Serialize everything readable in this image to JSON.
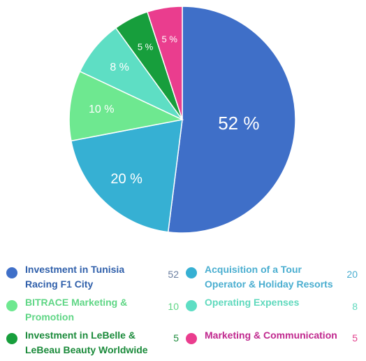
{
  "chart_data": {
    "type": "pie",
    "title": "",
    "unit_suffix": " %",
    "slices": [
      {
        "label": "Investment in Tunisia Racing F1 City",
        "legend_lines": [
          "Investment in Tunisia",
          "Racing F1 City"
        ],
        "value": 52,
        "color": "#3f6fc8",
        "text_color": "#2f5faa",
        "value_color": "#6b7fa0"
      },
      {
        "label": "Acquisition of a Tour Operator & Holiday Resorts",
        "legend_lines": [
          "Acquisition of a Tour",
          "Operator & Holiday Resorts"
        ],
        "value": 20,
        "color": "#36b0d3",
        "text_color": "#4aaed0",
        "value_color": "#4aaed0"
      },
      {
        "label": "BITRACE Marketing & Promotion",
        "legend_lines": [
          "BITRACE Marketing &",
          "Promotion"
        ],
        "value": 10,
        "color": "#6ee890",
        "text_color": "#5fd685",
        "value_color": "#5fd685"
      },
      {
        "label": "Operating Expenses",
        "legend_lines": [
          "Operating Expenses"
        ],
        "value": 8,
        "color": "#5edec4",
        "text_color": "#5fd9bd",
        "value_color": "#5fd9bd"
      },
      {
        "label": "Investment in LeBelle & LeBeau Beauty Worldwide",
        "legend_lines": [
          "Investment in LeBelle &",
          "LeBeau Beauty Worldwide"
        ],
        "value": 5,
        "color": "#179e3c",
        "text_color": "#1a8a3a",
        "value_color": "#1a8a3a"
      },
      {
        "label": "Marketing & Communication",
        "legend_lines": [
          "Marketing & Communication"
        ],
        "value": 5,
        "color": "#ea3d8e",
        "text_color": "#c0288e",
        "value_color": "#e3408d"
      }
    ],
    "legend_placement": "bottom",
    "grid": false
  }
}
